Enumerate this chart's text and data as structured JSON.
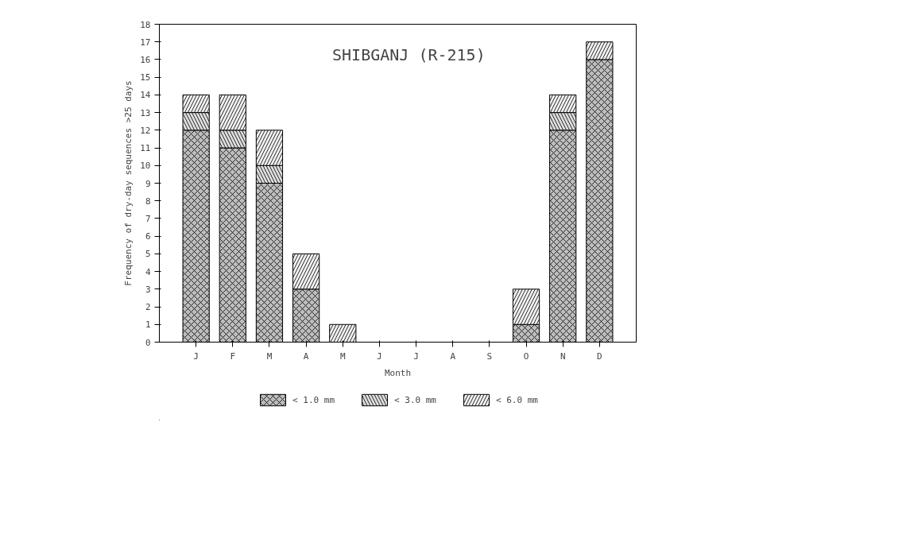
{
  "chart_data": {
    "type": "bar",
    "title": "SHIBGANJ (R-215)",
    "xlabel": "Month",
    "ylabel": "Frequency of dry-day sequences >25 days",
    "categories": [
      "J",
      "F",
      "M",
      "A",
      "M",
      "J",
      "J",
      "A",
      "S",
      "O",
      "N",
      "D"
    ],
    "stacked": true,
    "series": [
      {
        "name": "< 1.0 mm",
        "color": "#bdbdbd",
        "values": [
          12,
          11,
          9,
          3,
          0,
          0,
          0,
          0,
          0,
          1,
          12,
          16
        ]
      },
      {
        "name": "< 3.0 mm",
        "color": "#dcdcdc",
        "values": [
          1,
          1,
          1,
          0,
          0,
          0,
          0,
          0,
          0,
          0,
          1,
          0
        ]
      },
      {
        "name": "< 6.0 mm",
        "color": "#efefef",
        "values": [
          1,
          2,
          2,
          2,
          1,
          0,
          0,
          0,
          0,
          2,
          1,
          1
        ]
      }
    ],
    "ylim": [
      0,
      18
    ],
    "yticks": [
      0,
      1,
      2,
      3,
      4,
      5,
      6,
      7,
      8,
      9,
      10,
      11,
      12,
      13,
      14,
      15,
      16,
      17,
      18
    ],
    "grid": false,
    "legend": "bottom"
  }
}
